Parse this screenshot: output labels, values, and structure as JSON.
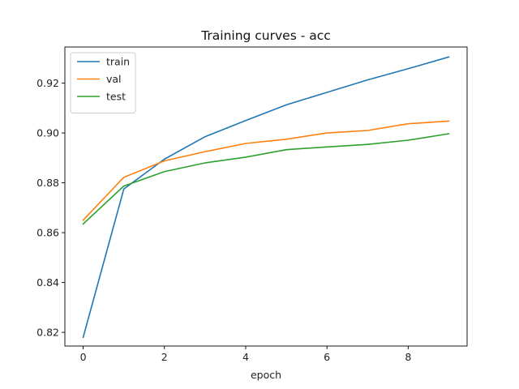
{
  "chart_data": {
    "type": "line",
    "title": "Training curves - acc",
    "xlabel": "epoch",
    "ylabel": "",
    "x": [
      0,
      1,
      2,
      3,
      4,
      5,
      6,
      7,
      8,
      9
    ],
    "xlim": [
      -0.45,
      9.45
    ],
    "ylim": [
      0.8145,
      0.9345
    ],
    "xticks": [
      0,
      2,
      4,
      6,
      8
    ],
    "yticks": [
      0.82,
      0.84,
      0.86,
      0.88,
      0.9,
      0.92
    ],
    "ytick_labels": [
      "0.82",
      "0.84",
      "0.86",
      "0.88",
      "0.90",
      "0.92"
    ],
    "xtick_labels": [
      "0",
      "2",
      "4",
      "6",
      "8"
    ],
    "grid": false,
    "legend_position": "top-left",
    "series": [
      {
        "name": "train",
        "color": "#1f77b4",
        "values": [
          0.818,
          0.8775,
          0.8895,
          0.8985,
          0.905,
          0.9113,
          0.9163,
          0.9213,
          0.9258,
          0.9305
        ]
      },
      {
        "name": "val",
        "color": "#ff7f0e",
        "values": [
          0.865,
          0.8822,
          0.8888,
          0.8925,
          0.8958,
          0.8975,
          0.9,
          0.901,
          0.9037,
          0.9048
        ]
      },
      {
        "name": "test",
        "color": "#2ca02c",
        "values": [
          0.8635,
          0.8787,
          0.8845,
          0.888,
          0.8903,
          0.8933,
          0.8944,
          0.8954,
          0.8971,
          0.8997
        ]
      }
    ]
  }
}
